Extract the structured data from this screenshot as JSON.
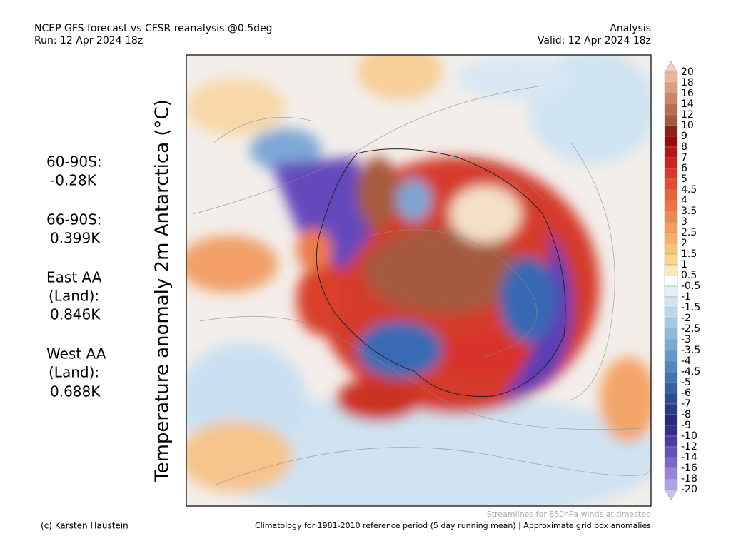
{
  "header": {
    "left": [
      "NCEP GFS forecast vs CFSR reanalysis @0.5deg",
      "Run: 12 Apr 2024 18z"
    ],
    "right": [
      "Analysis",
      "Valid: 12 Apr 2024 18z"
    ]
  },
  "stats": [
    [
      "60-90S:",
      "-0.28K"
    ],
    [
      "66-90S:",
      "0.399K"
    ],
    [
      "East AA",
      "(Land):",
      "0.846K"
    ],
    [
      "West AA",
      "(Land):",
      "0.688K"
    ]
  ],
  "map_title": "Temperature anomaly 2m Antarctica (°C)",
  "colorbar": {
    "labels": [
      "20",
      "18",
      "16",
      "14",
      "12",
      "10",
      "9",
      "8",
      "7",
      "6",
      "5",
      "4.5",
      "4",
      "3.5",
      "3",
      "2.5",
      "2",
      "1.5",
      "1",
      "0.5",
      "-0.5",
      "-1",
      "-1.5",
      "-2",
      "-2.5",
      "-3",
      "-3.5",
      "-4",
      "-4.5",
      "-5",
      "-6",
      "-7",
      "-8",
      "-9",
      "-10",
      "-12",
      "-14",
      "-16",
      "-18",
      "-20"
    ],
    "colors": [
      "#f6cdb8",
      "#eab49e",
      "#dc9c80",
      "#cc8566",
      "#b86e4e",
      "#a25a3c",
      "#8a2418",
      "#a00808",
      "#b81414",
      "#cc2222",
      "#dc3828",
      "#e44c30",
      "#ea6038",
      "#ef7442",
      "#f2884e",
      "#f49c5a",
      "#f6b066",
      "#f8c474",
      "#fad68c",
      "#fce8b4",
      "#ffffff",
      "#e2eff9",
      "#cde4f4",
      "#b8d8ee",
      "#a2cbe6",
      "#8cbcdd",
      "#76abd4",
      "#6299ca",
      "#5087be",
      "#4274b2",
      "#3560a4",
      "#2a4c96",
      "#283a86",
      "#2c2a7a",
      "#3a2c8c",
      "#4e3aa6",
      "#6650bc",
      "#7e68cc",
      "#9884d8",
      "#b2a2e2",
      "#cabff0"
    ]
  },
  "footer": {
    "streamlines": "Streamlines for 850hPa winds at timestep",
    "credit": "(c) Karsten Haustein",
    "climatology": "Climatology for 1981-2010 reference period (5 day running mean) | Approximate grid box anomalies"
  }
}
